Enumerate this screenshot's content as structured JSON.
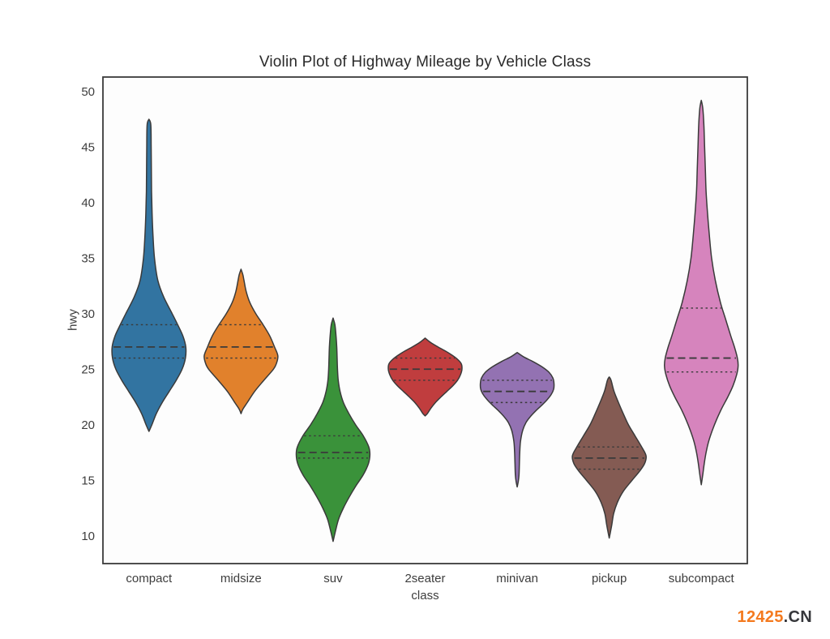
{
  "page": {
    "background_color": "#ffffff"
  },
  "watermark": {
    "prefix": "12425",
    "suffix": ".CN",
    "prefix_color": "#f47a1f",
    "suffix_color": "#36373b"
  },
  "chart_data": {
    "type": "violin",
    "title": "Violin Plot of Highway Mileage by Vehicle Class",
    "xlabel": "class",
    "ylabel": "hwy",
    "ylim": [
      7.5,
      51.3
    ],
    "yticks": [
      10,
      15,
      20,
      25,
      30,
      35,
      40,
      45,
      50
    ],
    "grid": false,
    "legend": "none",
    "frame_color": "#3b3b3b",
    "edge_color": "#3a3a3a",
    "quartile_line_color": "#3a3a3a",
    "tick_label_color": "#3d3d3d",
    "categories": [
      "compact",
      "midsize",
      "suv",
      "2seater",
      "minivan",
      "pickup",
      "subcompact"
    ],
    "series": [
      {
        "name": "compact",
        "color": "#3274a1",
        "range": [
          19.4,
          47.5
        ],
        "quartiles": {
          "q1": 26,
          "median": 27,
          "q3": 29
        },
        "profile": [
          [
            47.5,
            0
          ],
          [
            47,
            0.05
          ],
          [
            45,
            0.06
          ],
          [
            43,
            0.065
          ],
          [
            41,
            0.07
          ],
          [
            39,
            0.085
          ],
          [
            37,
            0.11
          ],
          [
            35,
            0.15
          ],
          [
            33,
            0.24
          ],
          [
            31.5,
            0.4
          ],
          [
            30,
            0.63
          ],
          [
            29,
            0.78
          ],
          [
            28,
            0.92
          ],
          [
            27,
            1.0
          ],
          [
            26,
            0.99
          ],
          [
            25,
            0.9
          ],
          [
            24,
            0.74
          ],
          [
            23,
            0.55
          ],
          [
            22,
            0.36
          ],
          [
            21,
            0.2
          ],
          [
            20,
            0.08
          ],
          [
            19.4,
            0
          ]
        ]
      },
      {
        "name": "midsize",
        "color": "#e1812c",
        "range": [
          21,
          34
        ],
        "quartiles": {
          "q1": 26,
          "median": 27,
          "q3": 29
        },
        "profile": [
          [
            34,
            0
          ],
          [
            33.5,
            0.05
          ],
          [
            33,
            0.08
          ],
          [
            32,
            0.14
          ],
          [
            31,
            0.24
          ],
          [
            30,
            0.4
          ],
          [
            29,
            0.6
          ],
          [
            28,
            0.78
          ],
          [
            27,
            0.91
          ],
          [
            26.2,
            1.0
          ],
          [
            25.5,
            0.96
          ],
          [
            25,
            0.88
          ],
          [
            24,
            0.62
          ],
          [
            23,
            0.37
          ],
          [
            22,
            0.17
          ],
          [
            21.4,
            0.05
          ],
          [
            21,
            0
          ]
        ]
      },
      {
        "name": "suv",
        "color": "#3a923a",
        "range": [
          9.5,
          29.6
        ],
        "quartiles": {
          "q1": 17,
          "median": 17.5,
          "q3": 19
        },
        "profile": [
          [
            29.6,
            0
          ],
          [
            29,
            0.05
          ],
          [
            28,
            0.08
          ],
          [
            27,
            0.1
          ],
          [
            26,
            0.11
          ],
          [
            25,
            0.12
          ],
          [
            24,
            0.14
          ],
          [
            23,
            0.19
          ],
          [
            22,
            0.28
          ],
          [
            21,
            0.43
          ],
          [
            20,
            0.61
          ],
          [
            19,
            0.82
          ],
          [
            18,
            0.97
          ],
          [
            17.3,
            1.0
          ],
          [
            16.5,
            0.96
          ],
          [
            15.5,
            0.82
          ],
          [
            14.5,
            0.62
          ],
          [
            13.5,
            0.44
          ],
          [
            12.5,
            0.28
          ],
          [
            11.5,
            0.15
          ],
          [
            10.5,
            0.07
          ],
          [
            9.5,
            0
          ]
        ]
      },
      {
        "name": "2seater",
        "color": "#c03d3e",
        "range": [
          20.8,
          27.8
        ],
        "quartiles": {
          "q1": 24,
          "median": 25,
          "q3": 26
        },
        "profile": [
          [
            27.8,
            0
          ],
          [
            27.4,
            0.15
          ],
          [
            27,
            0.35
          ],
          [
            26.5,
            0.62
          ],
          [
            26,
            0.84
          ],
          [
            25.5,
            0.98
          ],
          [
            25,
            1.0
          ],
          [
            24.5,
            0.96
          ],
          [
            24,
            0.88
          ],
          [
            23.5,
            0.75
          ],
          [
            23,
            0.59
          ],
          [
            22.5,
            0.43
          ],
          [
            22,
            0.28
          ],
          [
            21.5,
            0.16
          ],
          [
            21,
            0.06
          ],
          [
            20.8,
            0
          ]
        ]
      },
      {
        "name": "minivan",
        "color": "#9372b2",
        "range": [
          14.4,
          26.5
        ],
        "quartiles": {
          "q1": 22,
          "median": 23,
          "q3": 24
        },
        "profile": [
          [
            26.5,
            0
          ],
          [
            26.1,
            0.18
          ],
          [
            25.7,
            0.42
          ],
          [
            25.2,
            0.68
          ],
          [
            24.7,
            0.87
          ],
          [
            24.2,
            0.97
          ],
          [
            23.7,
            1.0
          ],
          [
            23.2,
            0.99
          ],
          [
            22.7,
            0.92
          ],
          [
            22.2,
            0.8
          ],
          [
            21.7,
            0.65
          ],
          [
            21.2,
            0.49
          ],
          [
            20.7,
            0.35
          ],
          [
            20.2,
            0.24
          ],
          [
            19.5,
            0.15
          ],
          [
            18.5,
            0.09
          ],
          [
            17.5,
            0.07
          ],
          [
            16.5,
            0.06
          ],
          [
            15.5,
            0.05
          ],
          [
            14.9,
            0.03
          ],
          [
            14.4,
            0
          ]
        ]
      },
      {
        "name": "pickup",
        "color": "#845b53",
        "range": [
          9.8,
          24.3
        ],
        "quartiles": {
          "q1": 16,
          "median": 17,
          "q3": 18
        },
        "profile": [
          [
            24.3,
            0
          ],
          [
            24,
            0.05
          ],
          [
            23,
            0.13
          ],
          [
            22,
            0.25
          ],
          [
            21,
            0.38
          ],
          [
            20,
            0.52
          ],
          [
            19,
            0.7
          ],
          [
            18,
            0.88
          ],
          [
            17.2,
            1.0
          ],
          [
            16.5,
            0.96
          ],
          [
            15.8,
            0.82
          ],
          [
            15,
            0.62
          ],
          [
            14,
            0.38
          ],
          [
            13,
            0.22
          ],
          [
            12,
            0.12
          ],
          [
            11,
            0.07
          ],
          [
            10.3,
            0.03
          ],
          [
            9.8,
            0
          ]
        ]
      },
      {
        "name": "subcompact",
        "color": "#d684bd",
        "range": [
          14.6,
          49.2
        ],
        "quartiles": {
          "q1": 24.75,
          "median": 26,
          "q3": 30.5
        },
        "profile": [
          [
            49.2,
            0
          ],
          [
            48.5,
            0.04
          ],
          [
            47,
            0.07
          ],
          [
            45,
            0.09
          ],
          [
            43,
            0.11
          ],
          [
            41,
            0.13
          ],
          [
            39,
            0.17
          ],
          [
            37,
            0.22
          ],
          [
            35,
            0.28
          ],
          [
            33,
            0.38
          ],
          [
            31,
            0.52
          ],
          [
            29.5,
            0.66
          ],
          [
            28,
            0.8
          ],
          [
            27,
            0.9
          ],
          [
            26,
            0.98
          ],
          [
            25.3,
            1.0
          ],
          [
            24.5,
            0.96
          ],
          [
            23.5,
            0.86
          ],
          [
            22.5,
            0.72
          ],
          [
            21.5,
            0.56
          ],
          [
            20.5,
            0.42
          ],
          [
            19.5,
            0.3
          ],
          [
            18.5,
            0.2
          ],
          [
            17.5,
            0.13
          ],
          [
            16.5,
            0.08
          ],
          [
            15.5,
            0.04
          ],
          [
            14.6,
            0
          ]
        ]
      }
    ]
  }
}
